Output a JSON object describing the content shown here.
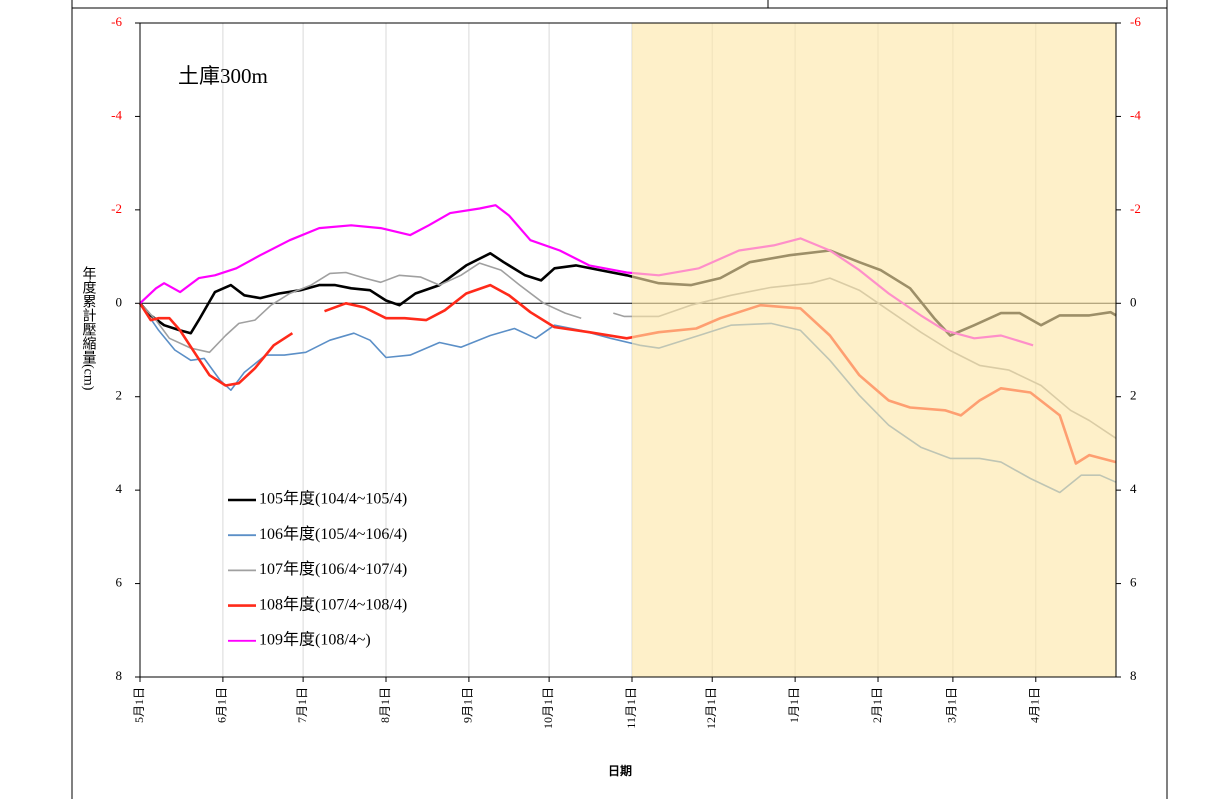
{
  "chart_data": {
    "type": "line",
    "annotation": "土庫300m",
    "ylabel": "年度累計壓縮量(cm)",
    "xlabel": "日期",
    "xlim": [
      0,
      365
    ],
    "xticks": [
      {
        "value": 0,
        "label": "5月1日"
      },
      {
        "value": 31,
        "label": "6月1日"
      },
      {
        "value": 61,
        "label": "7月1日"
      },
      {
        "value": 92,
        "label": "8月1日"
      },
      {
        "value": 123,
        "label": "9月1日"
      },
      {
        "value": 153,
        "label": "10月1日"
      },
      {
        "value": 184,
        "label": "11月1日"
      },
      {
        "value": 214,
        "label": "12月1日"
      },
      {
        "value": 245,
        "label": "1月1日"
      },
      {
        "value": 276,
        "label": "2月1日"
      },
      {
        "value": 304,
        "label": "3月1日"
      },
      {
        "value": 335,
        "label": "4月1日"
      }
    ],
    "ylim": [
      -6,
      8
    ],
    "y_inverted": true,
    "yticks": [
      -6,
      -4,
      -2,
      0,
      2,
      4,
      6,
      8
    ],
    "y2lim": [
      -6,
      8
    ],
    "y2ticks": [
      -6,
      -4,
      -2,
      0,
      2,
      4,
      6,
      8
    ],
    "negative_tick_color": "#ff0000",
    "grid": true,
    "zero_line": true,
    "highlight": [
      184,
      365
    ],
    "highlight_color": "#fde7a8",
    "series": [
      {
        "name": "105年度(104/4~105/4)",
        "color": "#000000",
        "x": [
          0,
          4,
          9,
          15,
          19,
          22,
          28,
          34,
          39,
          45,
          52,
          60,
          67,
          73,
          79,
          86,
          92,
          97,
          103,
          112,
          122,
          131,
          136,
          144,
          150,
          155,
          163,
          172,
          182,
          194,
          206,
          217,
          228,
          243,
          258,
          269,
          277,
          288,
          297,
          303,
          312,
          322,
          329,
          337,
          344,
          355,
          363,
          365
        ],
        "values": [
          0,
          0.26,
          0.47,
          0.58,
          0.64,
          0.36,
          -0.24,
          -0.39,
          -0.17,
          -0.11,
          -0.21,
          -0.28,
          -0.39,
          -0.39,
          -0.32,
          -0.28,
          -0.06,
          0.04,
          -0.21,
          -0.39,
          -0.81,
          -1.07,
          -0.88,
          -0.6,
          -0.49,
          -0.75,
          -0.81,
          -0.71,
          -0.6,
          -0.43,
          -0.39,
          -0.54,
          -0.88,
          -1.03,
          -1.13,
          -0.88,
          -0.71,
          -0.32,
          0.32,
          0.69,
          0.47,
          0.21,
          0.21,
          0.47,
          0.26,
          0.26,
          0.19,
          0.26
        ]
      },
      {
        "name": "106年度(105/4~106/4)",
        "color": "#5b8fc7",
        "x": [
          0,
          7,
          13,
          19,
          24,
          30,
          34,
          39,
          47,
          54,
          62,
          71,
          80,
          86,
          92,
          101,
          112,
          120,
          131,
          140,
          148,
          155,
          165,
          176,
          187,
          194,
          209,
          221,
          236,
          247,
          258,
          269,
          280,
          292,
          303,
          314,
          322,
          333,
          344,
          352,
          359,
          365
        ],
        "values": [
          0,
          0.58,
          1.0,
          1.22,
          1.18,
          1.65,
          1.86,
          1.48,
          1.11,
          1.11,
          1.05,
          0.79,
          0.64,
          0.79,
          1.16,
          1.11,
          0.84,
          0.94,
          0.69,
          0.54,
          0.75,
          0.47,
          0.58,
          0.75,
          0.9,
          0.96,
          0.69,
          0.47,
          0.43,
          0.58,
          1.22,
          1.97,
          2.61,
          3.08,
          3.32,
          3.32,
          3.4,
          3.75,
          4.05,
          3.68,
          3.68,
          3.83
        ]
      },
      {
        "name": "107年度(106/4~107/4)",
        "color": "#a0a0a0",
        "x": [
          0,
          6,
          11,
          19,
          26,
          32,
          37,
          43,
          49,
          56,
          64,
          71,
          77,
          84,
          90,
          97,
          105,
          112,
          120,
          127,
          135,
          142,
          151,
          159,
          165,
          null,
          177,
          181,
          194,
          206,
          221,
          236,
          251,
          258,
          269,
          280,
          292,
          303,
          314,
          325,
          337,
          348,
          355,
          365
        ],
        "values": [
          0,
          0.36,
          0.75,
          0.96,
          1.05,
          0.69,
          0.43,
          0.36,
          0.04,
          -0.21,
          -0.39,
          -0.64,
          -0.66,
          -0.54,
          -0.45,
          -0.6,
          -0.56,
          -0.39,
          -0.6,
          -0.86,
          -0.71,
          -0.39,
          0,
          0.21,
          0.32,
          null,
          0.21,
          0.28,
          0.28,
          0.04,
          -0.17,
          -0.34,
          -0.43,
          -0.54,
          -0.28,
          0.15,
          0.62,
          1.01,
          1.33,
          1.43,
          1.76,
          2.29,
          2.51,
          2.89
        ]
      },
      {
        "name": "108年度(107/4~108/4)",
        "color": "#ff2a1a",
        "x": [
          0,
          4,
          7,
          11,
          15,
          21,
          26,
          32,
          37,
          43,
          50,
          57,
          null,
          69,
          77,
          84,
          92,
          99,
          107,
          114,
          122,
          131,
          138,
          146,
          155,
          168,
          182,
          194,
          208,
          217,
          232,
          247,
          258,
          269,
          280,
          288,
          301,
          307,
          314,
          322,
          333,
          344,
          350,
          355,
          365
        ],
        "values": [
          0,
          0.36,
          0.32,
          0.32,
          0.58,
          1.11,
          1.54,
          1.76,
          1.71,
          1.39,
          0.9,
          0.64,
          null,
          0.17,
          0,
          0.09,
          0.32,
          0.32,
          0.36,
          0.15,
          -0.21,
          -0.39,
          -0.17,
          0.19,
          0.51,
          0.62,
          0.75,
          0.62,
          0.54,
          0.32,
          0.04,
          0.11,
          0.69,
          1.54,
          2.08,
          2.23,
          2.29,
          2.4,
          2.08,
          1.82,
          1.91,
          2.4,
          3.43,
          3.25,
          3.4
        ]
      },
      {
        "name": "109年度(108/4~)",
        "color": "#ff00ff",
        "x": [
          0,
          6,
          9,
          15,
          22,
          28,
          36,
          45,
          56,
          67,
          79,
          90,
          101,
          108,
          116,
          127,
          133,
          138,
          146,
          157,
          168,
          182,
          194,
          209,
          224,
          237,
          247,
          258,
          269,
          280,
          292,
          301,
          312,
          322,
          334
        ],
        "values": [
          0,
          -0.32,
          -0.43,
          -0.24,
          -0.54,
          -0.6,
          -0.75,
          -1.03,
          -1.35,
          -1.61,
          -1.67,
          -1.61,
          -1.46,
          -1.67,
          -1.93,
          -2.03,
          -2.1,
          -1.88,
          -1.35,
          -1.13,
          -0.81,
          -0.66,
          -0.6,
          -0.75,
          -1.13,
          -1.24,
          -1.39,
          -1.13,
          -0.71,
          -0.21,
          0.26,
          0.58,
          0.75,
          0.69,
          0.9
        ]
      }
    ]
  }
}
